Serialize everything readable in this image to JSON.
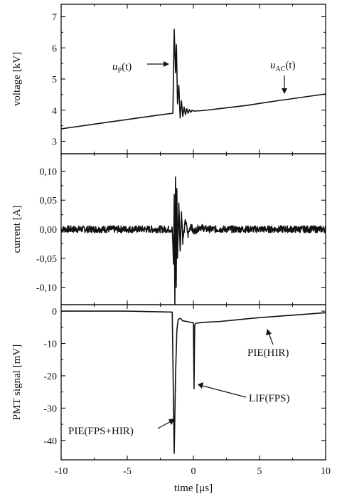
{
  "chart_data": [
    {
      "type": "line",
      "panel": "top",
      "ylabel": "voltage [kV]",
      "xlim": [
        -10,
        10
      ],
      "ylim": [
        2.6,
        7.4
      ],
      "yticks": [
        3,
        4,
        5,
        6,
        7
      ],
      "ytick_labels": [
        "3",
        "4",
        "5",
        "6",
        "7"
      ],
      "series": [
        {
          "x": [
            -10,
            -2.5,
            -1.55,
            -1.45,
            -1.35,
            -1.28,
            -1.2,
            -1.1,
            -1.0,
            -0.9,
            -0.8,
            -0.7,
            -0.6,
            -0.5,
            -0.4,
            -0.3,
            -0.2,
            -0.1,
            0,
            0.5,
            1,
            2,
            4,
            6,
            8,
            10
          ],
          "y": [
            3.4,
            3.85,
            3.9,
            6.6,
            5.2,
            6.1,
            4.2,
            4.8,
            3.75,
            4.3,
            3.8,
            4.1,
            3.85,
            4.05,
            3.9,
            4.02,
            3.93,
            4.0,
            3.97,
            3.98,
            4.0,
            4.05,
            4.15,
            4.28,
            4.4,
            4.52
          ]
        }
      ],
      "annotations": [
        {
          "label": "u",
          "subscript": "P",
          "suffix": "(t)"
        },
        {
          "label": "u",
          "subscript": "AC",
          "suffix": "(t)"
        }
      ]
    },
    {
      "type": "line",
      "panel": "middle",
      "ylabel": "current [A]",
      "xlim": [
        -10,
        10
      ],
      "ylim": [
        -0.13,
        0.13
      ],
      "yticks": [
        -0.1,
        -0.05,
        0.0,
        0.05,
        0.1
      ],
      "ytick_labels": [
        "-0,10",
        "-0,05",
        "0,00",
        "0,05",
        "0,10"
      ],
      "series": [
        {
          "x": [
            -10,
            -1.6,
            -1.5,
            -1.45,
            -1.4,
            -1.35,
            -1.3,
            -1.25,
            -1.2,
            -1.1,
            -1.0,
            -0.9,
            -0.8,
            -0.6,
            -0.4,
            -0.2,
            0,
            0.5,
            1,
            3,
            5,
            7,
            10
          ],
          "y": [
            0.0,
            0.0,
            -0.06,
            0.06,
            -0.13,
            0.09,
            -0.1,
            0.07,
            -0.05,
            0.045,
            -0.035,
            0.03,
            -0.02,
            0.015,
            -0.01,
            0.008,
            -0.005,
            0.004,
            0.0,
            0.0,
            0.0,
            0.0,
            0.0
          ]
        }
      ],
      "noise_amplitude": 0.006
    },
    {
      "type": "line",
      "panel": "bottom",
      "ylabel": "PMT signal [mV]",
      "xlabel": "time [μs]",
      "xlim": [
        -10,
        10
      ],
      "xticks": [
        -10,
        -5,
        0,
        5,
        10
      ],
      "xtick_labels": [
        "-10",
        "-5",
        "0",
        "5",
        "10"
      ],
      "ylim": [
        -46,
        2
      ],
      "yticks": [
        0,
        -10,
        -20,
        -30,
        -40
      ],
      "ytick_labels": [
        "0",
        "-10",
        "-20",
        "-30",
        "-40"
      ],
      "series": [
        {
          "x": [
            -10,
            -5,
            -1.6,
            -1.45,
            -1.35,
            -1.25,
            -1.15,
            -1.0,
            -0.8,
            -0.5,
            -0.2,
            0.0,
            0.05,
            0.1,
            0.2,
            0.5,
            1,
            2,
            3,
            4,
            5,
            6,
            7,
            8,
            9,
            10
          ],
          "y": [
            0,
            0,
            -0.3,
            -44,
            -20,
            -6,
            -2.5,
            -2.2,
            -3.0,
            -3.2,
            -3.5,
            -3.6,
            -24,
            -4.2,
            -3.7,
            -3.6,
            -3.4,
            -3.2,
            -2.8,
            -2.4,
            -2.0,
            -1.7,
            -1.4,
            -1.1,
            -0.8,
            -0.5
          ]
        }
      ],
      "annotations": [
        {
          "label": "PIE(HIR)"
        },
        {
          "label": "LIF(FPS)"
        },
        {
          "label": "PIE(FPS+HIR)"
        }
      ]
    }
  ]
}
